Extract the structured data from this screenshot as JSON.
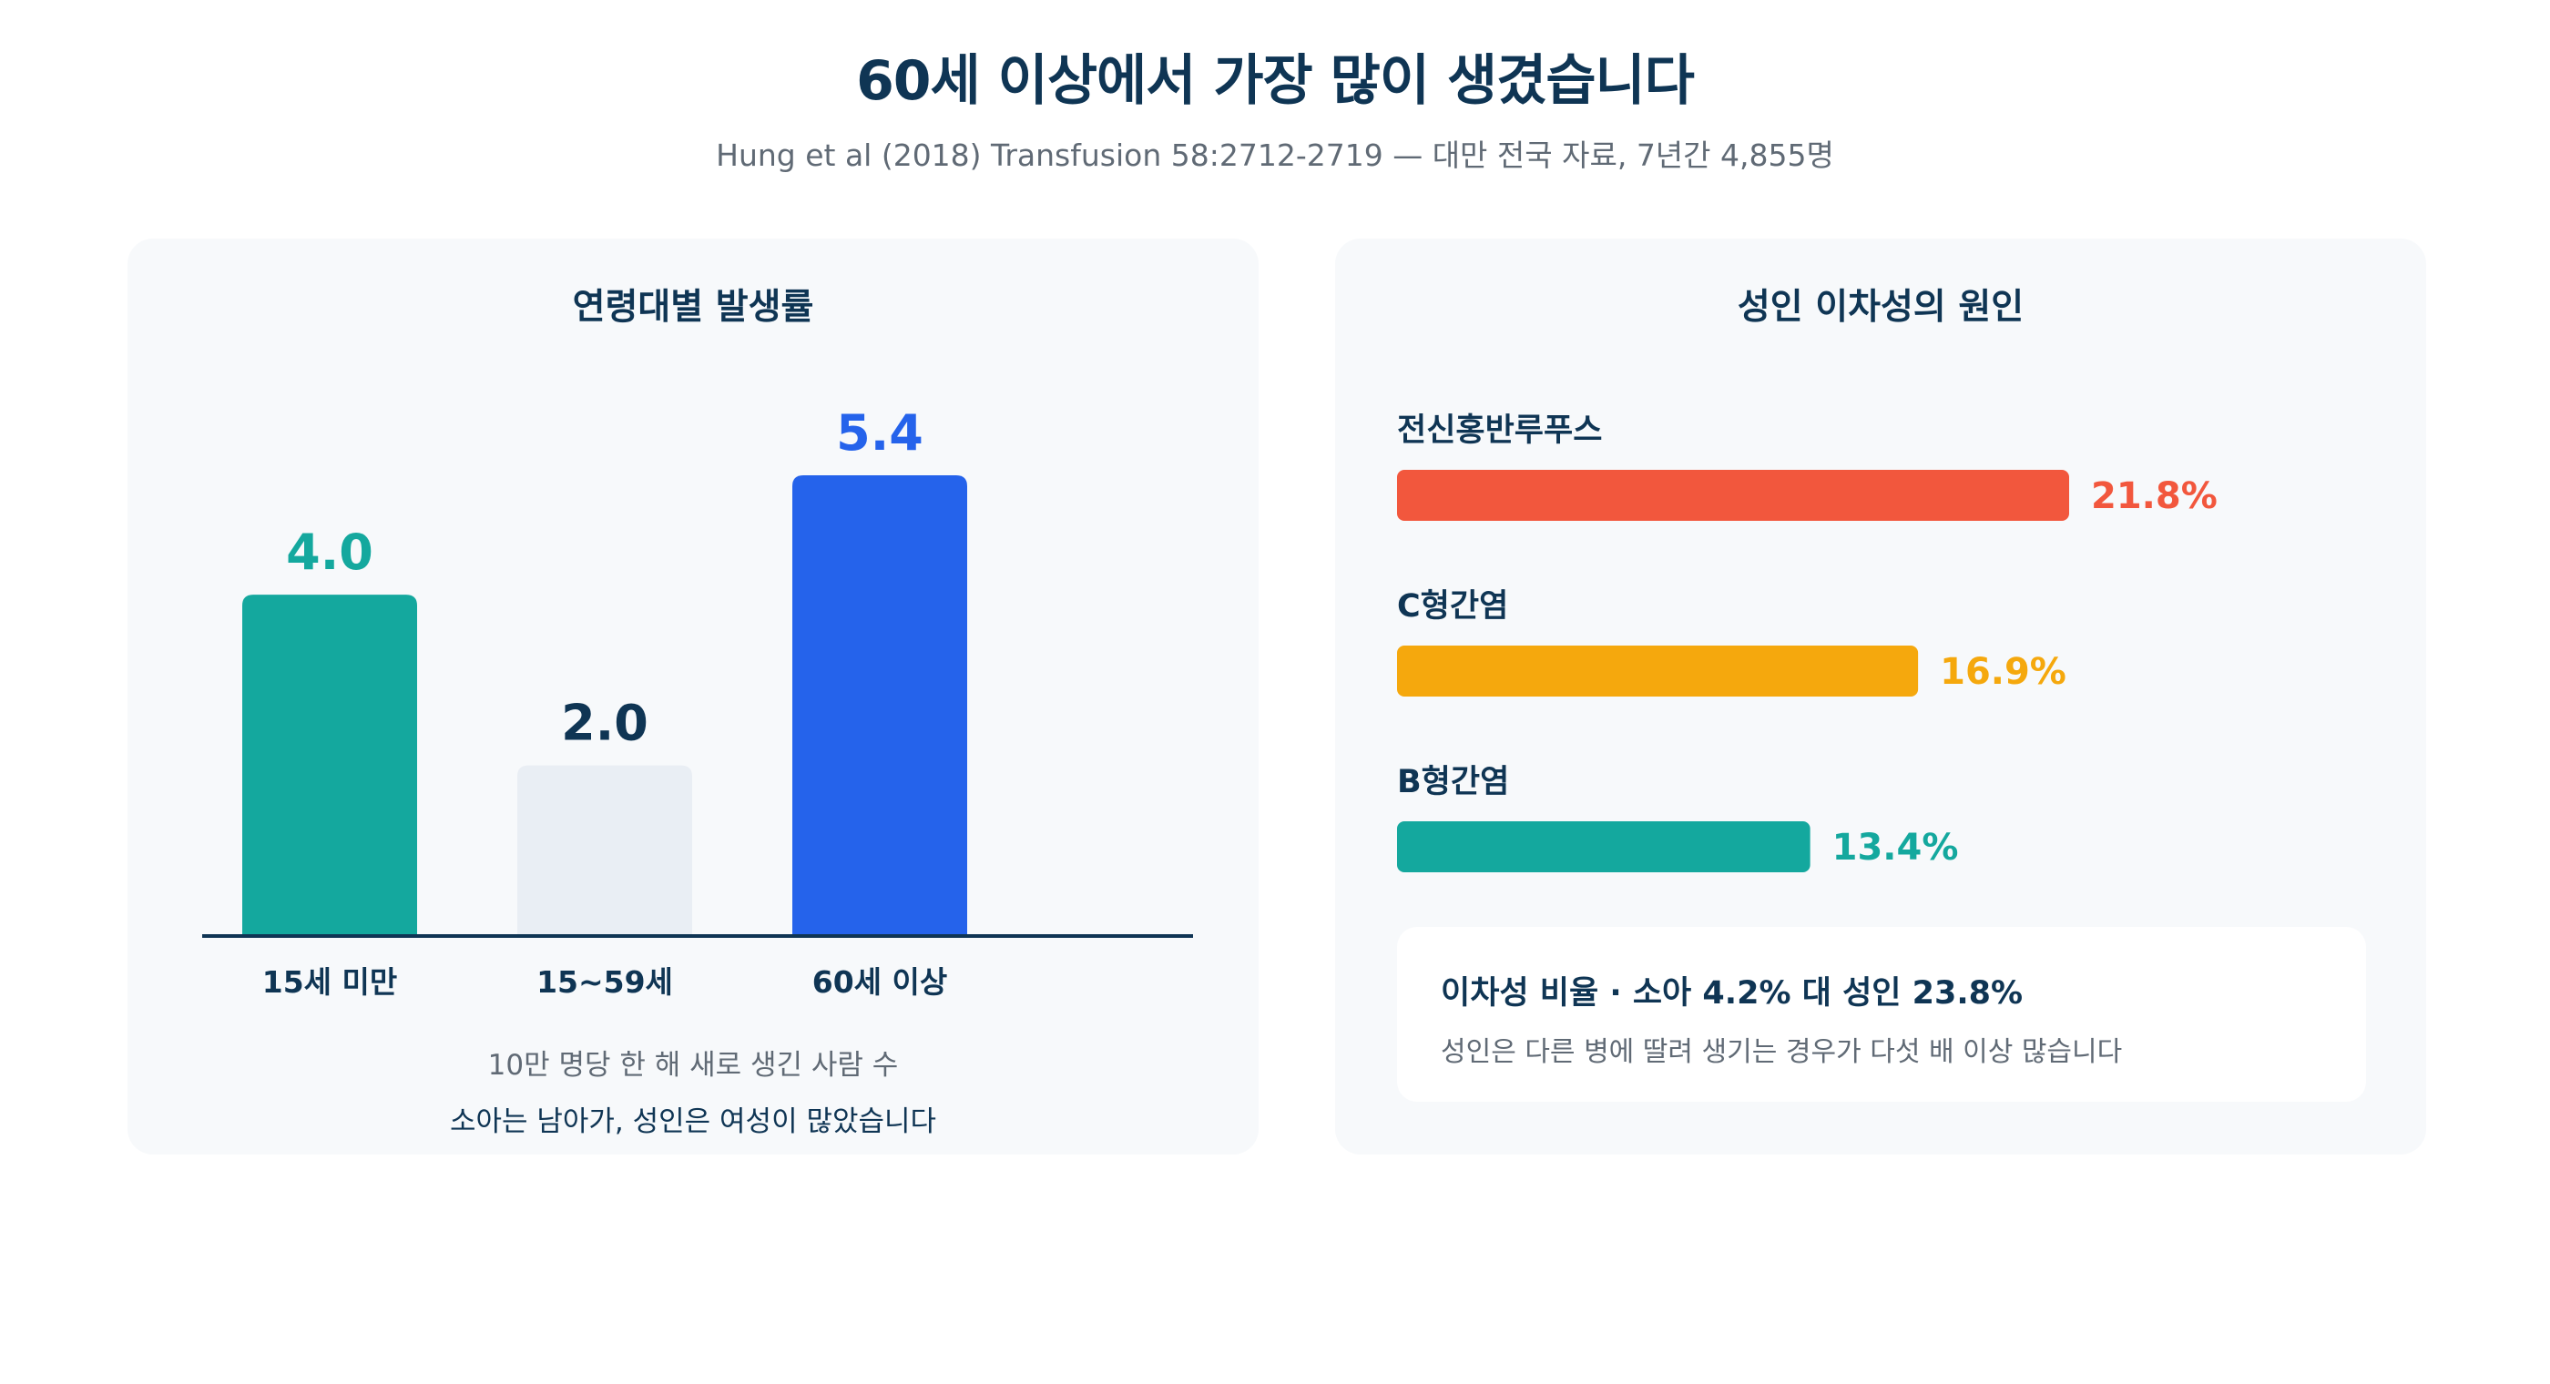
{
  "header": {
    "title": "60세 이상에서 가장 많이 생겼습니다",
    "subtitle": "Hung et al (2018) Transfusion 58:2712-2719 — 대만 전국 자료, 7년간 4,855명"
  },
  "left_panel": {
    "title": "연령대별 발생률",
    "note_primary": "10만 명당 한 해 새로 생긴 사람 수",
    "note_secondary": "소아는 남아가, 성인은 여성이 많았습니다"
  },
  "right_panel": {
    "title": "성인 이차성의 원인",
    "summary_title": "이차성 비율 · 소아 4.2% 대 성인 23.8%",
    "summary_text": "성인은 다른 병에 딸려 생기는 경우가 다섯 배 이상 많습니다"
  },
  "chart_data": [
    {
      "type": "bar",
      "title": "연령대별 발생률",
      "categories": [
        "15세 미만",
        "15~59세",
        "60세 이상"
      ],
      "values": [
        4.0,
        2.0,
        5.4
      ],
      "value_labels": [
        "4.0",
        "2.0",
        "5.4"
      ],
      "bar_colors": [
        "#14a89e",
        "#e9eef4",
        "#2563eb"
      ],
      "label_colors": [
        "#14a89e",
        "#0f3554",
        "#2563eb"
      ],
      "ylim": [
        0,
        5.4
      ],
      "grid": false
    },
    {
      "type": "bar",
      "orientation": "horizontal",
      "title": "성인 이차성의 원인",
      "categories": [
        "전신홍반루푸스",
        "C형간염",
        "B형간염"
      ],
      "values": [
        21.8,
        16.9,
        13.4
      ],
      "value_labels": [
        "21.8%",
        "16.9%",
        "13.4%"
      ],
      "colors": [
        "#f2573d",
        "#f5a80d",
        "#14a89e"
      ],
      "xlim": [
        0,
        21.8
      ],
      "grid": false
    }
  ],
  "colors": {
    "navy": "#0f3554",
    "muted": "#606a75",
    "panel_bg": "#f7f9fb"
  }
}
